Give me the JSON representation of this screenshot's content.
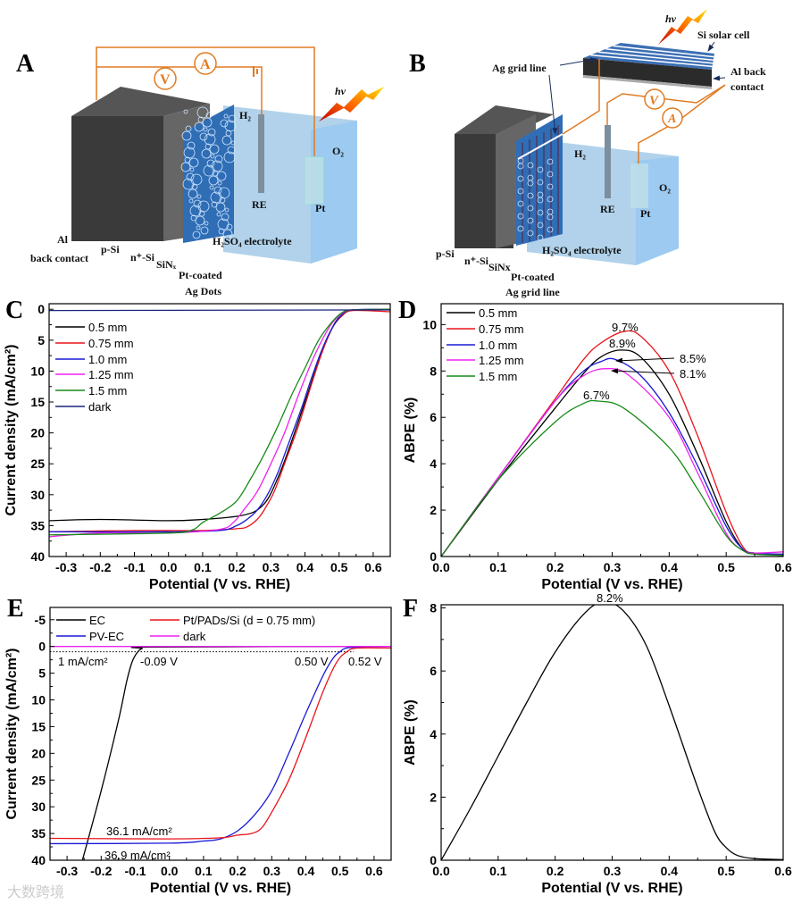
{
  "panels": {
    "A": {
      "label": "A",
      "meter_a": "A",
      "meter_v": "V",
      "light": "hν",
      "h2": "H₂",
      "o2": "O₂",
      "re": "RE",
      "pt": "Pt",
      "al": "Al",
      "back_contact": "back contact",
      "psi": "p-Si",
      "nsi": "n⁺-Si",
      "sinx": "SiNₓ",
      "ptcoated": "Pt-coated",
      "agdots": "Ag Dots",
      "electrolyte": "H₂SO₄ electrolyte"
    },
    "B": {
      "label": "B",
      "meter_a": "A",
      "meter_v": "V",
      "light": "hν",
      "solar_cell": "Si solar cell",
      "ag_grid_top": "Ag grid line",
      "al_back": "Al back",
      "contact": "contact",
      "h2": "H₂",
      "o2": "O₂",
      "re": "RE",
      "pt": "Pt",
      "psi": "p-Si",
      "nsi": "n⁺-Si",
      "sinx": "SiNx",
      "ptcoated": "Pt-coated",
      "aggrid": "Ag grid line",
      "electrolyte": "H₂SO₄ electrolyte"
    },
    "C": {
      "label": "C"
    },
    "D": {
      "label": "D"
    },
    "E": {
      "label": "E"
    },
    "F": {
      "label": "F"
    }
  },
  "watermark": "大数跨境",
  "colors": {
    "black": "#000000",
    "red": "#e8141c",
    "blue": "#1a1ad6",
    "magenta": "#ee22ee",
    "green": "#168a16",
    "navy": "#1a237e",
    "orange": "#e07b22"
  },
  "chart_data": [
    {
      "panel": "C",
      "type": "line",
      "xlabel": "Potential (V vs. RHE)",
      "ylabel": "Current density (mA/cm²)",
      "xlim": [
        -0.35,
        0.65
      ],
      "ylim": [
        -0.9,
        40
      ],
      "y_inverted": true,
      "xticks": [
        -0.3,
        -0.2,
        -0.1,
        0.0,
        0.1,
        0.2,
        0.3,
        0.4,
        0.5,
        0.6
      ],
      "yticks": [
        0,
        5,
        10,
        15,
        20,
        25,
        30,
        35,
        40
      ],
      "legend_position": "top-left",
      "series": [
        {
          "name": "0.5 mm",
          "color": "#000000",
          "points": [
            [
              -0.35,
              34.2
            ],
            [
              -0.2,
              34.0
            ],
            [
              0,
              34.2
            ],
            [
              0.1,
              34.0
            ],
            [
              0.2,
              33.5
            ],
            [
              0.25,
              32.8
            ],
            [
              0.28,
              31.5
            ],
            [
              0.3,
              29.8
            ],
            [
              0.33,
              26
            ],
            [
              0.36,
              21.5
            ],
            [
              0.4,
              15
            ],
            [
              0.43,
              10
            ],
            [
              0.46,
              5.5
            ],
            [
              0.49,
              2
            ],
            [
              0.52,
              0.5
            ],
            [
              0.55,
              0.1
            ],
            [
              0.65,
              0
            ]
          ]
        },
        {
          "name": "0.75 mm",
          "color": "#e8141c",
          "points": [
            [
              -0.35,
              36.0
            ],
            [
              -0.1,
              35.8
            ],
            [
              0.1,
              35.8
            ],
            [
              0.2,
              35.5
            ],
            [
              0.23,
              35.2
            ],
            [
              0.26,
              34.0
            ],
            [
              0.28,
              32.5
            ],
            [
              0.31,
              29.5
            ],
            [
              0.34,
              25
            ],
            [
              0.38,
              19
            ],
            [
              0.42,
              12
            ],
            [
              0.45,
              7
            ],
            [
              0.48,
              3
            ],
            [
              0.51,
              1
            ],
            [
              0.54,
              0.2
            ],
            [
              0.65,
              0.4
            ]
          ]
        },
        {
          "name": "1.0 mm",
          "color": "#1a1ad6",
          "points": [
            [
              -0.35,
              36
            ],
            [
              0,
              36
            ],
            [
              0.15,
              35.8
            ],
            [
              0.2,
              35
            ],
            [
              0.23,
              34
            ],
            [
              0.26,
              32.5
            ],
            [
              0.29,
              30
            ],
            [
              0.32,
              26.5
            ],
            [
              0.35,
              22
            ],
            [
              0.39,
              16
            ],
            [
              0.42,
              11
            ],
            [
              0.45,
              6.5
            ],
            [
              0.48,
              3
            ],
            [
              0.51,
              0.8
            ],
            [
              0.54,
              0.1
            ],
            [
              0.65,
              0
            ]
          ]
        },
        {
          "name": "1.25 mm",
          "color": "#ee22ee",
          "points": [
            [
              -0.35,
              36.8
            ],
            [
              -0.2,
              36.2
            ],
            [
              0,
              36.2
            ],
            [
              0.15,
              35.6
            ],
            [
              0.19,
              34.5
            ],
            [
              0.22,
              32.5
            ],
            [
              0.26,
              29.5
            ],
            [
              0.3,
              25
            ],
            [
              0.34,
              20
            ],
            [
              0.38,
              14
            ],
            [
              0.42,
              8.5
            ],
            [
              0.45,
              5
            ],
            [
              0.48,
              2.2
            ],
            [
              0.51,
              0.6
            ],
            [
              0.54,
              0.1
            ],
            [
              0.65,
              0
            ]
          ]
        },
        {
          "name": "1.5 mm",
          "color": "#168a16",
          "points": [
            [
              -0.35,
              36.5
            ],
            [
              0,
              36.2
            ],
            [
              0.07,
              35.7
            ],
            [
              0.1,
              34.5
            ],
            [
              0.15,
              33
            ],
            [
              0.2,
              31
            ],
            [
              0.24,
              27.5
            ],
            [
              0.28,
              23.5
            ],
            [
              0.32,
              19
            ],
            [
              0.36,
              14
            ],
            [
              0.4,
              9.5
            ],
            [
              0.44,
              5
            ],
            [
              0.48,
              2
            ],
            [
              0.51,
              0.5
            ],
            [
              0.54,
              0.1
            ],
            [
              0.65,
              0
            ]
          ]
        },
        {
          "name": "dark",
          "color": "#1a237e",
          "points": [
            [
              -0.35,
              0.2
            ],
            [
              0.65,
              0.1
            ]
          ]
        }
      ]
    },
    {
      "panel": "D",
      "type": "line",
      "xlabel": "Potential (V vs. RHE)",
      "ylabel": "ABPE (%)",
      "xlim": [
        0,
        0.6
      ],
      "ylim": [
        0,
        10.9
      ],
      "y_inverted": false,
      "xticks": [
        0.0,
        0.1,
        0.2,
        0.3,
        0.4,
        0.5,
        0.6
      ],
      "yticks": [
        0,
        2,
        4,
        6,
        8,
        10
      ],
      "legend_position": "top-left",
      "annotations": [
        "9.7%",
        "8.9%",
        "8.5%",
        "8.1%",
        "6.7%"
      ],
      "series": [
        {
          "name": "0.5 mm",
          "color": "#000000",
          "points": [
            [
              0,
              0
            ],
            [
              0.1,
              3.3
            ],
            [
              0.2,
              6.4
            ],
            [
              0.25,
              7.9
            ],
            [
              0.28,
              8.6
            ],
            [
              0.315,
              8.9
            ],
            [
              0.35,
              8.6
            ],
            [
              0.4,
              7.0
            ],
            [
              0.45,
              4.4
            ],
            [
              0.5,
              1.5
            ],
            [
              0.53,
              0.3
            ],
            [
              0.55,
              0.15
            ],
            [
              0.6,
              0.05
            ]
          ]
        },
        {
          "name": "0.75 mm",
          "color": "#e8141c",
          "points": [
            [
              0,
              0
            ],
            [
              0.1,
              3.4
            ],
            [
              0.2,
              6.8
            ],
            [
              0.25,
              8.5
            ],
            [
              0.28,
              9.2
            ],
            [
              0.32,
              9.7
            ],
            [
              0.35,
              9.5
            ],
            [
              0.4,
              8.0
            ],
            [
              0.45,
              5.2
            ],
            [
              0.5,
              1.9
            ],
            [
              0.53,
              0.4
            ],
            [
              0.55,
              0.15
            ],
            [
              0.6,
              0.1
            ]
          ]
        },
        {
          "name": "1.0 mm",
          "color": "#1a1ad6",
          "points": [
            [
              0,
              0
            ],
            [
              0.1,
              3.4
            ],
            [
              0.2,
              6.7
            ],
            [
              0.25,
              8.0
            ],
            [
              0.28,
              8.4
            ],
            [
              0.305,
              8.5
            ],
            [
              0.35,
              7.8
            ],
            [
              0.4,
              6.2
            ],
            [
              0.45,
              3.9
            ],
            [
              0.5,
              1.3
            ],
            [
              0.53,
              0.3
            ],
            [
              0.55,
              0.15
            ],
            [
              0.6,
              0.1
            ]
          ]
        },
        {
          "name": "1.25 mm",
          "color": "#ee22ee",
          "points": [
            [
              0,
              0
            ],
            [
              0.1,
              3.4
            ],
            [
              0.2,
              6.7
            ],
            [
              0.25,
              7.8
            ],
            [
              0.29,
              8.1
            ],
            [
              0.33,
              7.8
            ],
            [
              0.4,
              6.0
            ],
            [
              0.45,
              3.6
            ],
            [
              0.5,
              1.0
            ],
            [
              0.53,
              0.25
            ],
            [
              0.55,
              0.15
            ],
            [
              0.6,
              0.2
            ]
          ]
        },
        {
          "name": "1.5 mm",
          "color": "#168a16",
          "points": [
            [
              0,
              0
            ],
            [
              0.1,
              3.3
            ],
            [
              0.2,
              5.8
            ],
            [
              0.25,
              6.6
            ],
            [
              0.275,
              6.7
            ],
            [
              0.32,
              6.4
            ],
            [
              0.4,
              4.7
            ],
            [
              0.45,
              2.9
            ],
            [
              0.5,
              0.9
            ],
            [
              0.53,
              0.25
            ],
            [
              0.55,
              0.1
            ],
            [
              0.6,
              0.05
            ]
          ]
        }
      ]
    },
    {
      "panel": "E",
      "type": "line",
      "xlabel": "Potential (V vs. RHE)",
      "ylabel": "Current density (mA/cm²)",
      "xlim": [
        -0.35,
        0.65
      ],
      "ylim": [
        -7.3,
        40
      ],
      "y_inverted": true,
      "xticks": [
        -0.3,
        -0.2,
        -0.1,
        0.0,
        0.1,
        0.2,
        0.3,
        0.4,
        0.5,
        0.6
      ],
      "yticks": [
        -5,
        0,
        5,
        10,
        15,
        20,
        25,
        30,
        35,
        40
      ],
      "legend_position": "top",
      "reference_line": 1,
      "annotations": [
        "1 mA/cm²",
        "-0.09 V",
        "0.50 V",
        "0.52 V",
        "36.1 mA/cm²",
        "36.9 mA/cm²"
      ],
      "series": [
        {
          "name": "EC",
          "color": "#000000",
          "points": [
            [
              -0.255,
              40
            ],
            [
              -0.2,
              27
            ],
            [
              -0.15,
              14
            ],
            [
              -0.125,
              6.5
            ],
            [
              -0.11,
              3
            ],
            [
              -0.095,
              1.2
            ],
            [
              -0.08,
              0.4
            ],
            [
              -0.05,
              0.1
            ],
            [
              0.65,
              0
            ]
          ]
        },
        {
          "name": "PV-EC",
          "color": "#1a1ad6",
          "points": [
            [
              -0.35,
              36.9
            ],
            [
              0,
              36.8
            ],
            [
              0.1,
              36.4
            ],
            [
              0.15,
              36
            ],
            [
              0.2,
              34.5
            ],
            [
              0.25,
              31.5
            ],
            [
              0.3,
              27
            ],
            [
              0.35,
              20
            ],
            [
              0.4,
              12.5
            ],
            [
              0.45,
              5.5
            ],
            [
              0.48,
              2.2
            ],
            [
              0.5,
              1
            ],
            [
              0.53,
              0.2
            ],
            [
              0.65,
              0
            ]
          ]
        },
        {
          "name": "Pt/PADs/Si (d = 0.75 mm)",
          "color": "#e8141c",
          "points": [
            [
              -0.35,
              35.9
            ],
            [
              0,
              36
            ],
            [
              0.15,
              35.8
            ],
            [
              0.2,
              35.3
            ],
            [
              0.24,
              35
            ],
            [
              0.27,
              34
            ],
            [
              0.3,
              31
            ],
            [
              0.35,
              25
            ],
            [
              0.4,
              17
            ],
            [
              0.45,
              8.5
            ],
            [
              0.49,
              3
            ],
            [
              0.52,
              1
            ],
            [
              0.55,
              0.3
            ],
            [
              0.65,
              0.3
            ]
          ]
        },
        {
          "name": "dark",
          "color": "#ee22ee",
          "points": [
            [
              -0.35,
              0
            ],
            [
              0.65,
              0
            ]
          ]
        }
      ]
    },
    {
      "panel": "F",
      "type": "line",
      "xlabel": "Potential (V vs. RHE)",
      "ylabel": "ABPE (%)",
      "xlim": [
        0,
        0.6
      ],
      "ylim": [
        0,
        8.1
      ],
      "y_inverted": false,
      "xticks": [
        0.0,
        0.1,
        0.2,
        0.3,
        0.4,
        0.5,
        0.6
      ],
      "yticks": [
        0,
        2,
        4,
        6,
        8
      ],
      "annotations": [
        "8.2%"
      ],
      "series": [
        {
          "name": "ABPE",
          "color": "#000000",
          "points": [
            [
              0,
              0
            ],
            [
              0.05,
              1.6
            ],
            [
              0.1,
              3.3
            ],
            [
              0.15,
              5
            ],
            [
              0.2,
              6.6
            ],
            [
              0.25,
              7.8
            ],
            [
              0.285,
              8.2
            ],
            [
              0.32,
              7.9
            ],
            [
              0.36,
              6.8
            ],
            [
              0.4,
              4.9
            ],
            [
              0.45,
              2.3
            ],
            [
              0.48,
              0.9
            ],
            [
              0.5,
              0.4
            ],
            [
              0.52,
              0.15
            ],
            [
              0.55,
              0.05
            ],
            [
              0.6,
              0.02
            ]
          ]
        }
      ]
    }
  ]
}
